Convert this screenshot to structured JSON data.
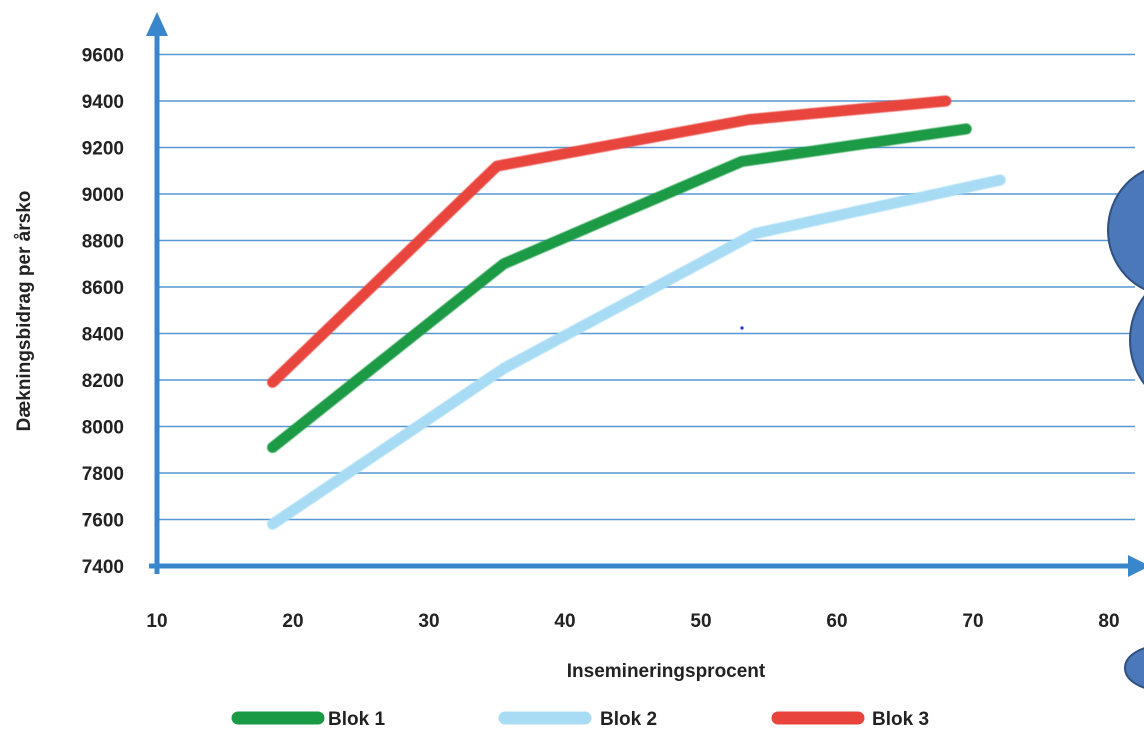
{
  "colors": {
    "axis": "#3a86cc",
    "grid": "#3a86cc",
    "side_shape": "#4a78b8",
    "side_shape_stroke": "#2f4f7f"
  },
  "chart_data": {
    "type": "line",
    "title": "",
    "xlabel": "Insemineringsprocent",
    "ylabel": "Dækningsbidrag per årsko",
    "xlim": [
      10,
      80
    ],
    "ylim": [
      7400,
      9600
    ],
    "x_ticks": [
      "10",
      "20",
      "30",
      "40",
      "50",
      "60",
      "70",
      "80"
    ],
    "y_ticks": [
      "9600",
      "9400",
      "9200",
      "9000",
      "8800",
      "8600",
      "8400",
      "8200",
      "8000",
      "7800",
      "7600",
      "7400"
    ],
    "grid": "horizontal",
    "legend_position": "bottom",
    "series": [
      {
        "name": "Blok 1",
        "color": "#1a9a44",
        "x": [
          18.5,
          35.5,
          53,
          69.5
        ],
        "y": [
          7910,
          8700,
          9140,
          9280
        ]
      },
      {
        "name": "Blok 2",
        "color": "#a8dcf4",
        "x": [
          18.5,
          35.5,
          54,
          72
        ],
        "y": [
          7580,
          8250,
          8830,
          9060
        ]
      },
      {
        "name": "Blok 3",
        "color": "#e8443c",
        "x": [
          18.5,
          35,
          53.5,
          68
        ],
        "y": [
          8190,
          9120,
          9320,
          9400
        ]
      }
    ]
  }
}
